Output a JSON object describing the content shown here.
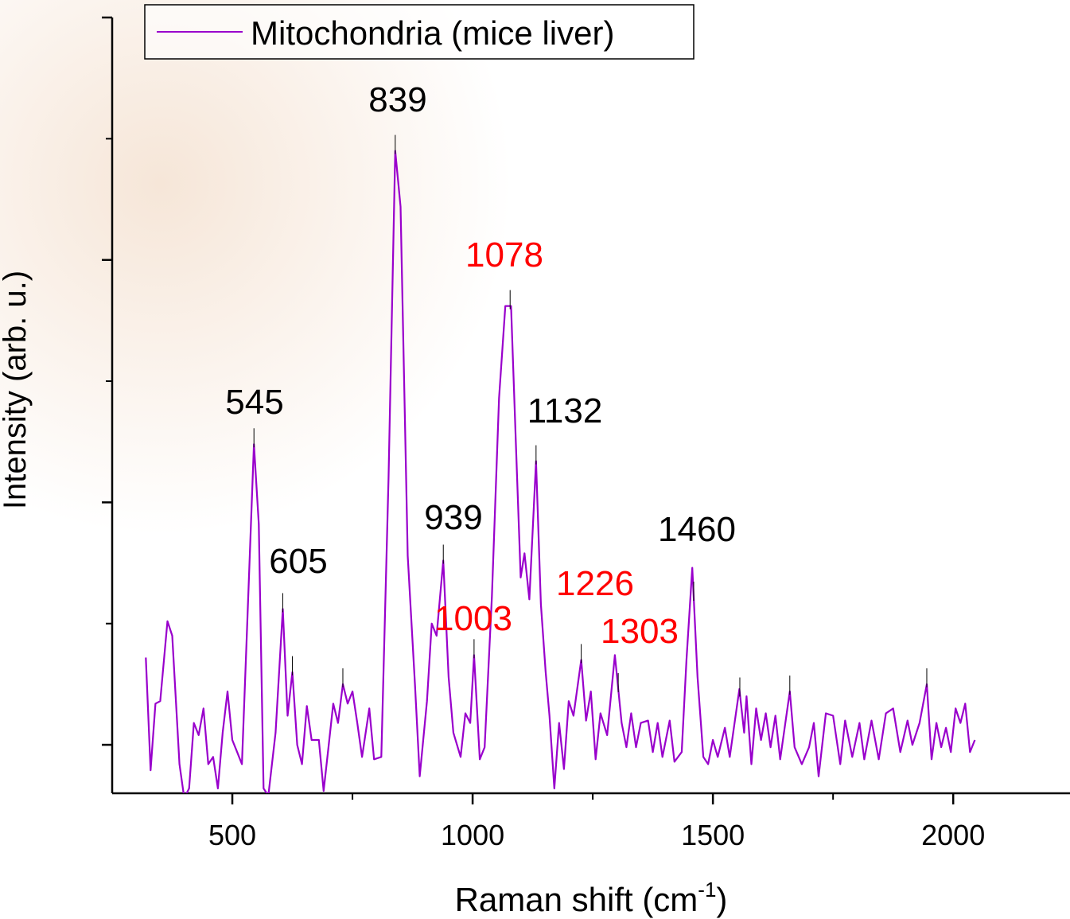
{
  "chart_data": {
    "type": "line",
    "xlabel": [
      "Raman shift (cm",
      "-1",
      ")"
    ],
    "ylabel": "Intensity (arb. u.)",
    "xlim": [
      250,
      2243
    ],
    "xticks": [
      500,
      1000,
      1500,
      2000
    ],
    "xminorticks": [
      750,
      1250,
      1750
    ],
    "ylim": [
      -0.2,
      3.0
    ],
    "yticks": [
      0,
      1,
      2,
      3
    ],
    "yminorticks": [
      0.5,
      1.5,
      2.5
    ],
    "legend": "upper left",
    "x": [
      320,
      330,
      340,
      350,
      365,
      375,
      390,
      400,
      410,
      420,
      430,
      440,
      450,
      460,
      470,
      480,
      490,
      500,
      510,
      520,
      530,
      545,
      555,
      565,
      575,
      590,
      605,
      615,
      625,
      635,
      645,
      655,
      665,
      680,
      690,
      700,
      710,
      720,
      730,
      740,
      750,
      760,
      770,
      785,
      795,
      810,
      825,
      839,
      850,
      865,
      880,
      890,
      905,
      915,
      925,
      939,
      950,
      960,
      975,
      985,
      995,
      1003,
      1015,
      1025,
      1040,
      1055,
      1068,
      1080,
      1090,
      1100,
      1108,
      1118,
      1132,
      1142,
      1152,
      1160,
      1170,
      1180,
      1190,
      1200,
      1210,
      1226,
      1236,
      1246,
      1256,
      1266,
      1280,
      1296,
      1310,
      1320,
      1330,
      1340,
      1350,
      1365,
      1375,
      1385,
      1395,
      1410,
      1420,
      1435,
      1445,
      1457,
      1468,
      1480,
      1490,
      1500,
      1510,
      1525,
      1535,
      1555,
      1565,
      1570,
      1580,
      1590,
      1600,
      1610,
      1620,
      1630,
      1640,
      1660,
      1670,
      1685,
      1700,
      1710,
      1720,
      1735,
      1750,
      1765,
      1775,
      1790,
      1805,
      1815,
      1830,
      1845,
      1860,
      1875,
      1890,
      1905,
      1915,
      1930,
      1945,
      1955,
      1965,
      1975,
      1985,
      1995,
      2005,
      2015,
      2025,
      2035,
      2045
    ],
    "series": [
      {
        "name": "Mitochondria (mice liver)",
        "color": "#9900cc",
        "values": [
          0.36,
          -0.105,
          0.17,
          0.18,
          0.51,
          0.45,
          -0.08,
          -0.22,
          -0.18,
          0.09,
          0.04,
          0.15,
          -0.08,
          -0.05,
          -0.18,
          0.05,
          0.22,
          0.02,
          -0.03,
          -0.08,
          0.45,
          1.24,
          0.91,
          -0.18,
          -0.21,
          0.05,
          0.56,
          0.12,
          0.3,
          0,
          -0.08,
          0.16,
          0.02,
          0.02,
          -0.19,
          -0.01,
          0.17,
          0.09,
          0.25,
          0.17,
          0.22,
          0.09,
          -0.05,
          0.15,
          -0.06,
          -0.05,
          1.1,
          2.45,
          2.22,
          0.78,
          0.25,
          -0.13,
          0.18,
          0.5,
          0.45,
          0.76,
          0.28,
          0.05,
          -0.05,
          0.13,
          0.09,
          0.37,
          -0.06,
          -0.01,
          0.61,
          1.43,
          1.81,
          1.81,
          1.24,
          0.69,
          0.79,
          0.6,
          1.17,
          0.58,
          0.3,
          0.12,
          -0.18,
          0.09,
          -0.1,
          0.18,
          0.12,
          0.35,
          0.1,
          0.22,
          -0.06,
          0.13,
          0.04,
          0.37,
          0.09,
          -0.01,
          0.13,
          -0.01,
          0.09,
          0.1,
          -0.03,
          0.09,
          -0.05,
          0.1,
          -0.07,
          -0.03,
          0.35,
          0.73,
          0.28,
          -0.05,
          -0.08,
          0.02,
          -0.05,
          0.07,
          -0.05,
          0.23,
          0.05,
          0.2,
          -0.08,
          0.15,
          0.02,
          0.13,
          -0.01,
          0.12,
          -0.06,
          0.22,
          -0.01,
          -0.08,
          -0.01,
          0.09,
          -0.13,
          0.13,
          0.12,
          -0.08,
          0.1,
          -0.05,
          0.09,
          -0.06,
          0.1,
          -0.06,
          0.13,
          0.15,
          -0.03,
          0.1,
          0,
          0.09,
          0.25,
          -0.06,
          0.09,
          -0.01,
          0.07,
          -0.03,
          0.15,
          0.09,
          0.17,
          -0.03,
          0.02
        ]
      }
    ],
    "peaks": [
      545,
      605,
      625,
      730,
      839,
      939,
      1003,
      1078,
      1132,
      1226,
      1303,
      1460,
      1556,
      1660,
      1945
    ],
    "annotations": [
      {
        "text": "839",
        "color": "#000000"
      },
      {
        "text": "1078",
        "color": "#ff0000"
      },
      {
        "text": "545",
        "color": "#000000"
      },
      {
        "text": "1132",
        "color": "#000000"
      },
      {
        "text": "939",
        "color": "#000000"
      },
      {
        "text": "605",
        "color": "#000000"
      },
      {
        "text": "1460",
        "color": "#000000"
      },
      {
        "text": "1226",
        "color": "#ff0000"
      },
      {
        "text": "1003",
        "color": "#ff0000"
      },
      {
        "text": "1303",
        "color": "#ff0000"
      }
    ]
  }
}
